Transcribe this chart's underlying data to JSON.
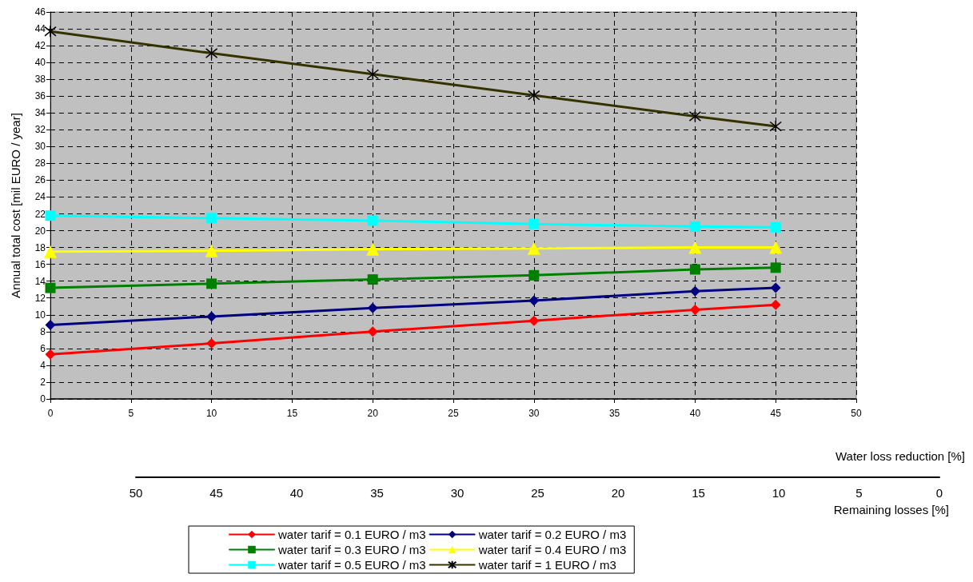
{
  "chart_data": {
    "type": "line",
    "xlabel": "Water loss reduction [%]",
    "ylabel": "Annual total cost [mil EURO / year]",
    "x2label": "Remaining losses [%]",
    "x": [
      0,
      10,
      20,
      30,
      40,
      45
    ],
    "xlim": [
      0,
      50
    ],
    "xticks": [
      0,
      5,
      10,
      15,
      20,
      25,
      30,
      35,
      40,
      45,
      50
    ],
    "ylim": [
      0,
      46
    ],
    "yticks": [
      0,
      2,
      4,
      6,
      8,
      10,
      12,
      14,
      16,
      18,
      20,
      22,
      24,
      26,
      28,
      30,
      32,
      34,
      36,
      38,
      40,
      42,
      44,
      46
    ],
    "x2lim": [
      50,
      0
    ],
    "x2ticks": [
      50,
      45,
      40,
      35,
      30,
      25,
      20,
      15,
      10,
      5,
      0
    ],
    "grid": true,
    "legend": "bottom",
    "line_style": "solid",
    "series": [
      {
        "name": "water tarif = 0.1 EURO / m3",
        "color": "#ff0000",
        "marker": "diamond",
        "values": [
          5.3,
          6.6,
          8.0,
          9.3,
          10.6,
          11.2
        ]
      },
      {
        "name": "water tarif = 0.2 EURO / m3",
        "color": "#000080",
        "marker": "diamond",
        "values": [
          8.8,
          9.8,
          10.8,
          11.7,
          12.8,
          13.2
        ]
      },
      {
        "name": "water tarif = 0.3 EURO / m3",
        "color": "#008000",
        "marker": "square",
        "values": [
          13.2,
          13.7,
          14.2,
          14.7,
          15.4,
          15.6
        ]
      },
      {
        "name": "water tarif = 0.4 EURO / m3",
        "color": "#ffff00",
        "marker": "triangle",
        "values": [
          17.5,
          17.6,
          17.8,
          17.9,
          18.0,
          18.0
        ]
      },
      {
        "name": "water tarif = 0.5 EURO / m3",
        "color": "#00ffff",
        "marker": "square",
        "values": [
          21.8,
          21.5,
          21.2,
          20.8,
          20.5,
          20.4
        ]
      },
      {
        "name": "water tarif = 1 EURO / m3",
        "color": "#333300",
        "marker": "cross",
        "values": [
          43.7,
          41.1,
          38.6,
          36.1,
          33.6,
          32.4
        ]
      }
    ]
  }
}
